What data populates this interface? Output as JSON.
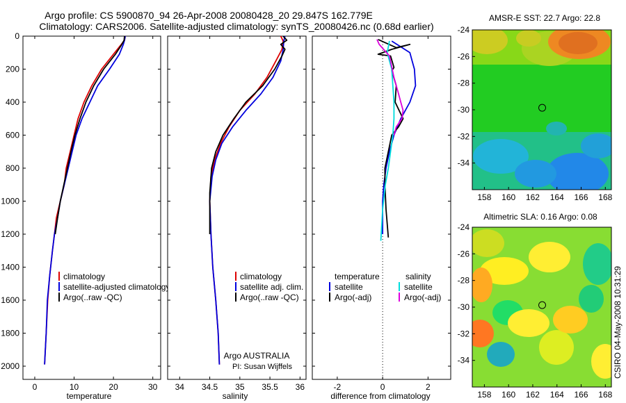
{
  "title_line1": "Argo profile: CS 5900870_94 26-Apr-2008 20080428_20 29.847S 162.779E",
  "title_line2": "Climatology: CARS2006. Satellite-adjusted climatology: synTS_20080426.nc (0.68d earlier)",
  "footer_vertical": "CSIRO 04-May-2008 10:31:29",
  "colors": {
    "red": "#dd0000",
    "blue": "#0000dd",
    "black": "#000000",
    "cyan": "#00dddd",
    "magenta": "#dd00dd"
  },
  "chart_data": [
    {
      "type": "line",
      "id": "temperature",
      "xlabel": "temperature",
      "ylabel": "",
      "xlim": [
        -3,
        32
      ],
      "ylim": [
        0,
        2080
      ],
      "y_reversed": true,
      "xticks": [
        0,
        10,
        20,
        30
      ],
      "yticks": [
        0,
        200,
        400,
        600,
        800,
        1000,
        1200,
        1400,
        1600,
        1800,
        2000
      ],
      "legend": [
        "climatology",
        "satellite-adjusted climatology",
        "Argo(..raw -QC)"
      ],
      "series": [
        {
          "name": "climatology",
          "color": "red",
          "x": [
            23,
            22.8,
            22,
            20,
            17,
            14.5,
            12.5,
            11,
            10,
            9,
            8,
            7.5,
            6.5,
            5.5,
            5,
            4.5,
            3.8,
            3.3,
            2.9,
            2.5
          ],
          "y": [
            0,
            25,
            50,
            110,
            200,
            300,
            400,
            500,
            600,
            700,
            800,
            900,
            1000,
            1100,
            1200,
            1300,
            1450,
            1600,
            1800,
            1990
          ]
        },
        {
          "name": "satellite-adjusted climatology",
          "color": "blue",
          "x": [
            23,
            22.8,
            22.5,
            21.5,
            19,
            16,
            14,
            12,
            10.5,
            9.5,
            8.5,
            7.5,
            6.5,
            5.8,
            5,
            4.5,
            3.8,
            3.2,
            2.9,
            2.5
          ],
          "y": [
            0,
            25,
            50,
            110,
            200,
            300,
            400,
            500,
            600,
            700,
            800,
            900,
            1000,
            1100,
            1200,
            1300,
            1450,
            1600,
            1800,
            1990
          ]
        },
        {
          "name": "Argo(..raw -QC)",
          "color": "black",
          "x": [
            22.8,
            22.7,
            22,
            20.5,
            17.5,
            15,
            13,
            11.5,
            10.2,
            9.2,
            8.3,
            7.4,
            6.5,
            5.8,
            5.2
          ],
          "y": [
            0,
            25,
            55,
            110,
            200,
            300,
            400,
            500,
            600,
            700,
            800,
            900,
            1000,
            1100,
            1200
          ]
        }
      ]
    },
    {
      "type": "line",
      "id": "salinity",
      "xlabel": "salinity",
      "ylabel": "",
      "xlim": [
        33.8,
        36.1
      ],
      "ylim": [
        0,
        2080
      ],
      "y_reversed": true,
      "xticks": [
        34,
        34.5,
        35,
        35.5,
        36
      ],
      "legend": [
        "climatology",
        "satellite adj. clim.",
        "Argo(..raw -QC)"
      ],
      "annotation": [
        "Argo AUSTRALIA",
        "PI: Susan Wijffels"
      ],
      "series": [
        {
          "name": "climatology",
          "color": "red",
          "x": [
            35.68,
            35.72,
            35.7,
            35.6,
            35.45,
            35.25,
            35.0,
            34.82,
            34.68,
            34.58,
            34.52,
            34.5,
            34.52,
            34.55,
            34.6,
            34.64,
            34.66
          ],
          "y": [
            0,
            30,
            80,
            150,
            250,
            350,
            450,
            550,
            650,
            750,
            850,
            1000,
            1200,
            1400,
            1600,
            1800,
            1990
          ]
        },
        {
          "name": "satellite adj. clim.",
          "color": "blue",
          "x": [
            35.75,
            35.73,
            35.72,
            35.68,
            35.55,
            35.35,
            35.1,
            34.88,
            34.7,
            34.6,
            34.54,
            34.5,
            34.52,
            34.55,
            34.6,
            34.64,
            34.66
          ],
          "y": [
            0,
            30,
            80,
            150,
            250,
            350,
            450,
            550,
            650,
            750,
            850,
            1000,
            1200,
            1400,
            1600,
            1800,
            1990
          ]
        },
        {
          "name": "Argo(..raw -QC)",
          "color": "black",
          "x": [
            35.72,
            35.78,
            35.68,
            35.75,
            35.7,
            35.58,
            35.38,
            35.1,
            34.9,
            34.72,
            34.6,
            34.53,
            34.5,
            34.5
          ],
          "y": [
            0,
            25,
            50,
            80,
            120,
            200,
            300,
            400,
            500,
            600,
            700,
            800,
            950,
            1200
          ]
        }
      ]
    },
    {
      "type": "line",
      "id": "difference",
      "xlabel": "difference from climatology",
      "ylabel": "",
      "xlim": [
        -3.1,
        3.0
      ],
      "ylim": [
        0,
        2080
      ],
      "y_reversed": true,
      "xticks": [
        -2,
        0,
        2
      ],
      "legend_headers": [
        "temperature",
        "salinity"
      ],
      "legend": [
        "satellite",
        "Argo(-adj)",
        "satellite",
        "Argo(-adj)"
      ],
      "series": [
        {
          "name": "temperature satellite",
          "color": "blue",
          "x": [
            0.4,
            1.2,
            1.3,
            1.4,
            1.45,
            1.2,
            0.8,
            0.5,
            0.3,
            0.15,
            0.05,
            0.0,
            0.0
          ],
          "y": [
            30,
            100,
            150,
            200,
            300,
            400,
            500,
            600,
            700,
            800,
            900,
            1000,
            1200
          ]
        },
        {
          "name": "temperature Argo(-adj)",
          "color": "black",
          "x": [
            -0.2,
            0.6,
            1.2,
            0.4,
            -0.2,
            0.35,
            0.5,
            0.4,
            0.6,
            0.55,
            0.9,
            0.7,
            0.4,
            0.25,
            0.1,
            0.1,
            0.15,
            0.25
          ],
          "y": [
            20,
            70,
            50,
            80,
            110,
            120,
            190,
            210,
            300,
            400,
            500,
            550,
            600,
            700,
            800,
            900,
            1050,
            1220
          ]
        },
        {
          "name": "salinity satellite",
          "color": "cyan",
          "x": [
            0.3,
            0.2,
            0.4,
            0.45,
            0.5,
            0.5,
            0.45,
            0.35,
            0.25,
            0.12,
            0.0,
            -0.08
          ],
          "y": [
            30,
            100,
            200,
            300,
            400,
            500,
            600,
            700,
            800,
            900,
            1050,
            1240
          ]
        },
        {
          "name": "salinity Argo(-adj)",
          "color": "magenta",
          "x": [
            -0.25,
            -0.15,
            0.3,
            0.5,
            0.7,
            0.8,
            0.9,
            0.85,
            0.6,
            0.5
          ],
          "y": [
            20,
            50,
            120,
            250,
            350,
            400,
            450,
            500,
            550,
            600
          ]
        }
      ]
    },
    {
      "type": "heatmap",
      "id": "sst-map",
      "title": "AMSR-E SST: 22.7 Argo: 22.8",
      "xlim": [
        157,
        168.5
      ],
      "ylim": [
        -36,
        -24
      ],
      "xticks": [
        158,
        160,
        162,
        164,
        166,
        168
      ],
      "yticks": [
        -24,
        -26,
        -28,
        -30,
        -32,
        -34
      ],
      "argo_position": [
        162.78,
        -29.85
      ]
    },
    {
      "type": "heatmap",
      "id": "sla-map",
      "title": "Altimetric SLA: 0.16 Argo: 0.08",
      "xlim": [
        157,
        168.5
      ],
      "ylim": [
        -36,
        -24
      ],
      "xticks": [
        158,
        160,
        162,
        164,
        166,
        168
      ],
      "yticks": [
        -24,
        -26,
        -28,
        -30,
        -32,
        -34
      ],
      "argo_position": [
        162.78,
        -29.85
      ]
    }
  ]
}
